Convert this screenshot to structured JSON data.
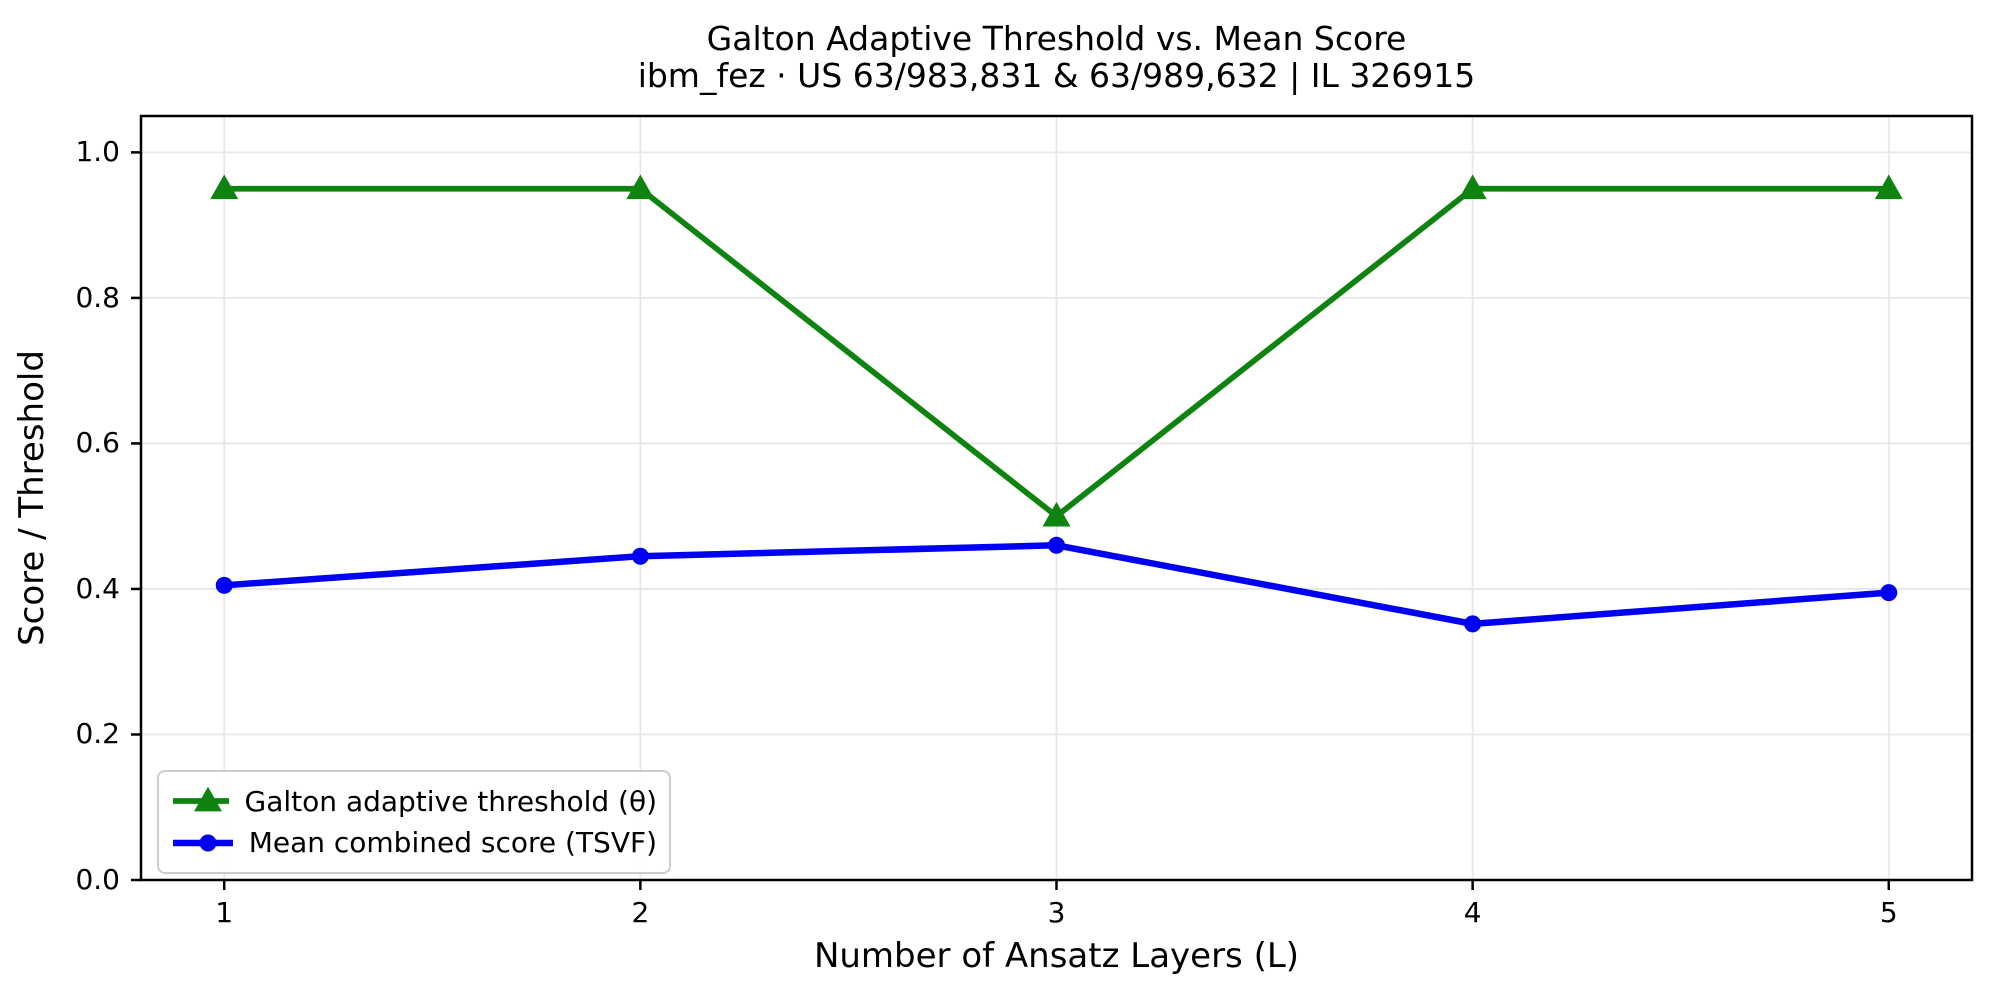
{
  "chart_data": {
    "type": "line",
    "title": "Galton Adaptive Threshold vs. Mean Score",
    "subtitle": "ibm_fez · US 63/983,831 & 63/989,632 | IL 326915",
    "xlabel": "Number of Ansatz Layers (L)",
    "ylabel": "Score / Threshold",
    "x": [
      1,
      2,
      3,
      4,
      5
    ],
    "xtick_labels": [
      "1",
      "2",
      "3",
      "4",
      "5"
    ],
    "ytick_values": [
      0.0,
      0.2,
      0.4,
      0.6,
      0.8,
      1.0
    ],
    "ytick_labels": [
      "0.0",
      "0.2",
      "0.4",
      "0.6",
      "0.8",
      "1.0"
    ],
    "xlim": [
      0.8,
      5.2
    ],
    "ylim": [
      0,
      1.05
    ],
    "grid": true,
    "grid_color": "#e7e7e7",
    "legend_position": "lower left",
    "series": [
      {
        "name": "Galton adaptive threshold (θ)",
        "color": "#0f830f",
        "marker": "triangle-up",
        "marker_size": 28,
        "line_width": 5.7,
        "values": [
          0.95,
          0.95,
          0.5,
          0.95,
          0.95
        ]
      },
      {
        "name": "Mean combined score (TSVF)",
        "color": "#0000f2",
        "marker": "circle",
        "marker_size": 17,
        "line_width": 6.5,
        "values": [
          0.405,
          0.445,
          0.46,
          0.352,
          0.395
        ]
      }
    ]
  }
}
